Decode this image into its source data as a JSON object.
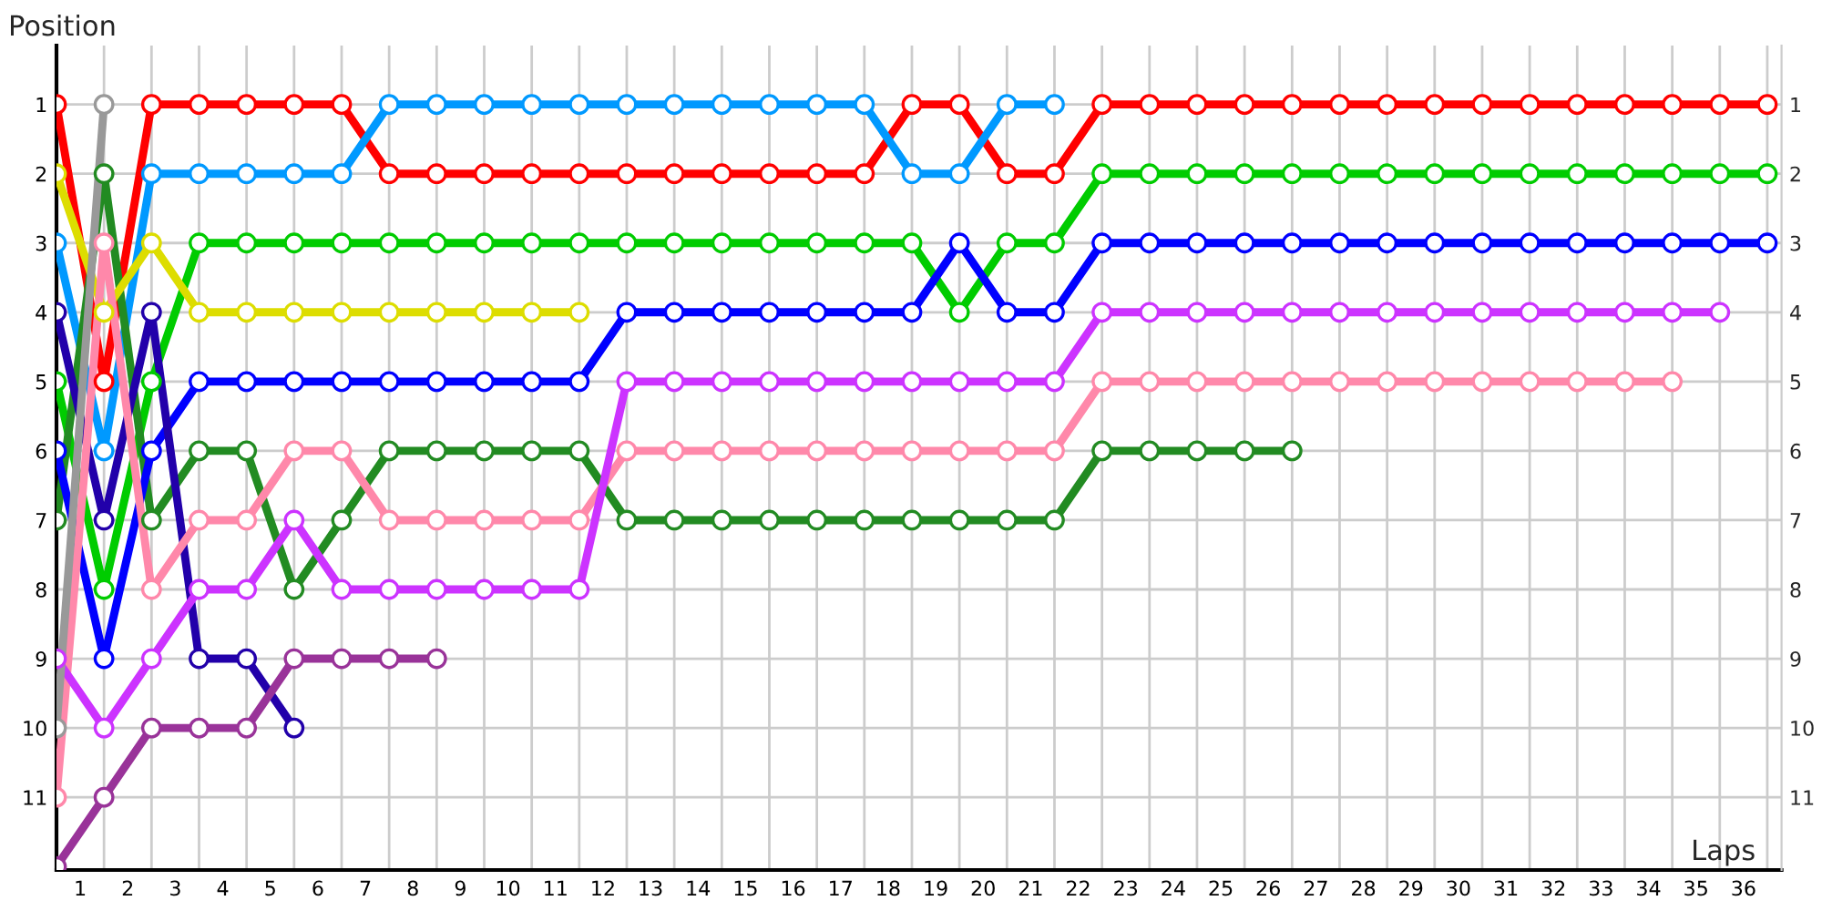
{
  "chart_data": {
    "type": "line",
    "xlabel": "Laps",
    "ylabel": "Position",
    "x": [
      0,
      1,
      2,
      3,
      4,
      5,
      6,
      7,
      8,
      9,
      10,
      11,
      12,
      13,
      14,
      15,
      16,
      17,
      18,
      19,
      20,
      21,
      22,
      23,
      24,
      25,
      26,
      27,
      28,
      29,
      30,
      31,
      32,
      33,
      34,
      35,
      36
    ],
    "xlim": [
      0,
      36.3
    ],
    "ylim": [
      12.05,
      0.15
    ],
    "xticks": [
      {
        "value": 0.5,
        "label": "1"
      },
      {
        "value": 1.5,
        "label": "2"
      },
      {
        "value": 2.5,
        "label": "3"
      },
      {
        "value": 3.5,
        "label": "4"
      },
      {
        "value": 4.5,
        "label": "5"
      },
      {
        "value": 5.5,
        "label": "6"
      },
      {
        "value": 6.5,
        "label": "7"
      },
      {
        "value": 7.5,
        "label": "8"
      },
      {
        "value": 8.5,
        "label": "9"
      },
      {
        "value": 9.5,
        "label": "10"
      },
      {
        "value": 10.5,
        "label": "11"
      },
      {
        "value": 11.5,
        "label": "12"
      },
      {
        "value": 12.5,
        "label": "13"
      },
      {
        "value": 13.5,
        "label": "14"
      },
      {
        "value": 14.5,
        "label": "15"
      },
      {
        "value": 15.5,
        "label": "16"
      },
      {
        "value": 16.5,
        "label": "17"
      },
      {
        "value": 17.5,
        "label": "18"
      },
      {
        "value": 18.5,
        "label": "19"
      },
      {
        "value": 19.5,
        "label": "20"
      },
      {
        "value": 20.5,
        "label": "21"
      },
      {
        "value": 21.5,
        "label": "22"
      },
      {
        "value": 22.5,
        "label": "23"
      },
      {
        "value": 23.5,
        "label": "24"
      },
      {
        "value": 24.5,
        "label": "25"
      },
      {
        "value": 25.5,
        "label": "26"
      },
      {
        "value": 26.5,
        "label": "27"
      },
      {
        "value": 27.5,
        "label": "28"
      },
      {
        "value": 28.5,
        "label": "29"
      },
      {
        "value": 29.5,
        "label": "30"
      },
      {
        "value": 30.5,
        "label": "31"
      },
      {
        "value": 31.5,
        "label": "32"
      },
      {
        "value": 32.5,
        "label": "33"
      },
      {
        "value": 33.5,
        "label": "34"
      },
      {
        "value": 34.5,
        "label": "35"
      },
      {
        "value": 35.5,
        "label": "36"
      }
    ],
    "yticks": [
      1,
      2,
      3,
      4,
      5,
      6,
      7,
      8,
      9,
      10,
      11
    ],
    "y2lim": [
      12.05,
      0.15
    ],
    "y2ticks": [
      1,
      2,
      3,
      4,
      5,
      6,
      7,
      8,
      9,
      10,
      11
    ],
    "grid": true,
    "marker": "circle",
    "line_style": "solid",
    "legend": false,
    "series": [
      {
        "color": "#ff0000",
        "values": [
          1,
          5,
          1,
          1,
          1,
          1,
          1,
          2,
          2,
          2,
          2,
          2,
          2,
          2,
          2,
          2,
          2,
          2,
          1,
          1,
          2,
          2,
          1,
          1,
          1,
          1,
          1,
          1,
          1,
          1,
          1,
          1,
          1,
          1,
          1,
          1,
          1
        ]
      },
      {
        "color": "#0099ff",
        "values": [
          3,
          6,
          2,
          2,
          2,
          2,
          2,
          1,
          1,
          1,
          1,
          1,
          1,
          1,
          1,
          1,
          1,
          1,
          2,
          2,
          1,
          1,
          null,
          null,
          null,
          null,
          null,
          null,
          null,
          null,
          null,
          null,
          null,
          null,
          null,
          null,
          null
        ]
      },
      {
        "color": "#00cc00",
        "values": [
          5,
          8,
          5,
          3,
          3,
          3,
          3,
          3,
          3,
          3,
          3,
          3,
          3,
          3,
          3,
          3,
          3,
          3,
          3,
          4,
          3,
          3,
          2,
          2,
          2,
          2,
          2,
          2,
          2,
          2,
          2,
          2,
          2,
          2,
          2,
          2,
          2
        ]
      },
      {
        "color": "#228b22",
        "values": [
          7,
          2,
          7,
          6,
          6,
          8,
          7,
          6,
          6,
          6,
          6,
          6,
          7,
          7,
          7,
          7,
          7,
          7,
          7,
          7,
          7,
          7,
          6,
          6,
          6,
          6,
          6,
          null,
          null,
          null,
          null,
          null,
          null,
          null,
          null,
          null,
          null
        ]
      },
      {
        "color": "#dddd00",
        "values": [
          2,
          4,
          3,
          4,
          4,
          4,
          4,
          4,
          4,
          4,
          4,
          4,
          null,
          null,
          null,
          null,
          null,
          null,
          null,
          null,
          null,
          null,
          null,
          null,
          null,
          null,
          null,
          null,
          null,
          null,
          null,
          null,
          null,
          null,
          null,
          null,
          null
        ]
      },
      {
        "color": "#0000ff",
        "values": [
          6,
          9,
          6,
          5,
          5,
          5,
          5,
          5,
          5,
          5,
          5,
          5,
          4,
          4,
          4,
          4,
          4,
          4,
          4,
          3,
          4,
          4,
          3,
          3,
          3,
          3,
          3,
          3,
          3,
          3,
          3,
          3,
          3,
          3,
          3,
          3,
          3
        ]
      },
      {
        "color": "#2200aa",
        "values": [
          4,
          7,
          4,
          9,
          9,
          10,
          null,
          null,
          null,
          null,
          null,
          null,
          null,
          null,
          null,
          null,
          null,
          null,
          null,
          null,
          null,
          null,
          null,
          null,
          null,
          null,
          null,
          null,
          null,
          null,
          null,
          null,
          null,
          null,
          null,
          null,
          null
        ]
      },
      {
        "color": "#ff88aa",
        "values": [
          11,
          3,
          8,
          7,
          7,
          6,
          6,
          7,
          7,
          7,
          7,
          7,
          6,
          6,
          6,
          6,
          6,
          6,
          6,
          6,
          6,
          6,
          5,
          5,
          5,
          5,
          5,
          5,
          5,
          5,
          5,
          5,
          5,
          5,
          5,
          null,
          null
        ]
      },
      {
        "color": "#cc33ff",
        "values": [
          9,
          10,
          9,
          8,
          8,
          7,
          8,
          8,
          8,
          8,
          8,
          8,
          5,
          5,
          5,
          5,
          5,
          5,
          5,
          5,
          5,
          5,
          4,
          4,
          4,
          4,
          4,
          4,
          4,
          4,
          4,
          4,
          4,
          4,
          4,
          4,
          null
        ]
      },
      {
        "color": "#993399",
        "values": [
          12,
          11,
          10,
          10,
          10,
          9,
          9,
          9,
          9,
          null,
          null,
          null,
          null,
          null,
          null,
          null,
          null,
          null,
          null,
          null,
          null,
          null,
          null,
          null,
          null,
          null,
          null,
          null,
          null,
          null,
          null,
          null,
          null,
          null,
          null,
          null,
          null
        ]
      },
      {
        "color": "#999999",
        "values": [
          10,
          1,
          null,
          null,
          null,
          null,
          null,
          null,
          null,
          null,
          null,
          null,
          null,
          null,
          null,
          null,
          null,
          null,
          null,
          null,
          null,
          null,
          null,
          null,
          null,
          null,
          null,
          null,
          null,
          null,
          null,
          null,
          null,
          null,
          null,
          null,
          null
        ]
      }
    ]
  }
}
